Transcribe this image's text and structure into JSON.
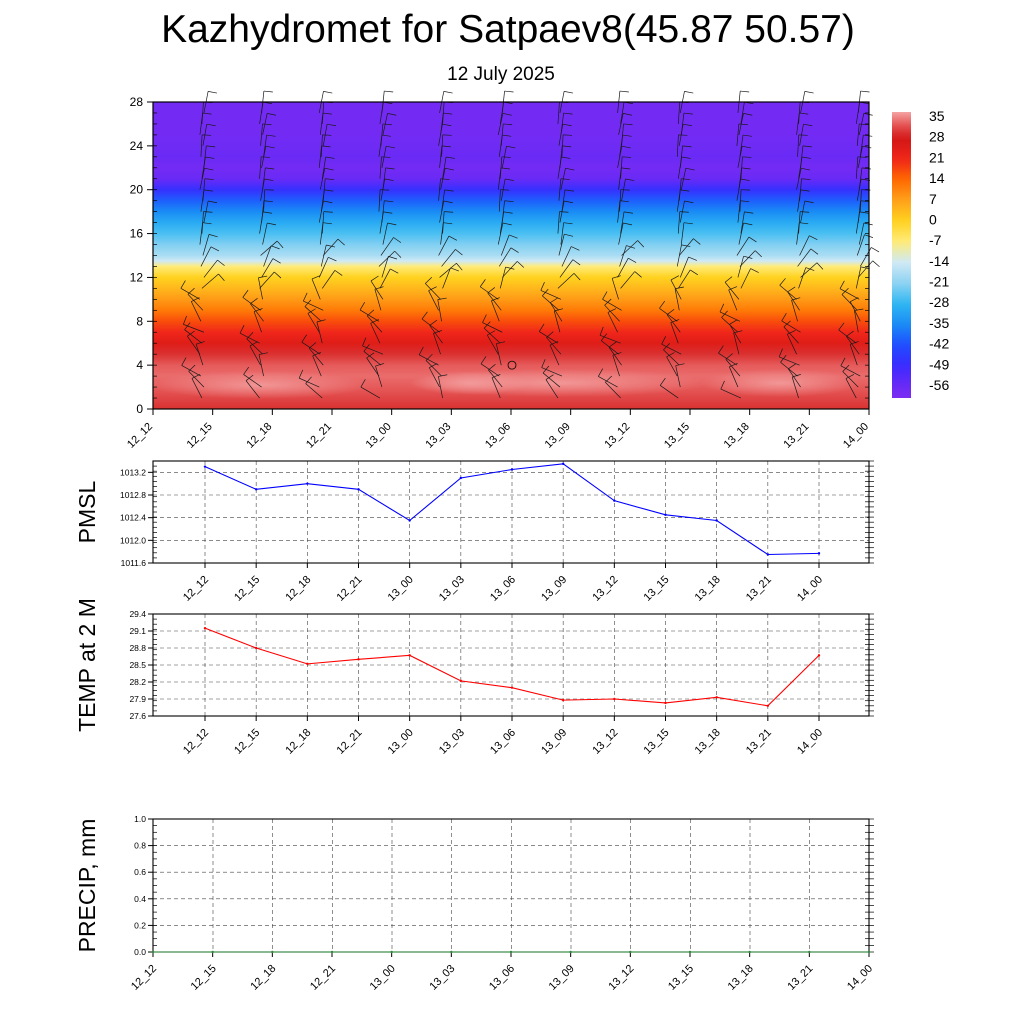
{
  "header": {
    "title": "Kazhydromet for Satpaev8(45.87 50.57)",
    "date": "12 July 2025"
  },
  "time_labels": [
    "12_12",
    "12_15",
    "12_18",
    "12_21",
    "13_00",
    "13_03",
    "13_06",
    "13_09",
    "13_12",
    "13_15",
    "13_18",
    "13_21",
    "14_00"
  ],
  "chart_data": [
    {
      "type": "heatmap",
      "title": "",
      "xlabel": "",
      "ylabel": "",
      "x": [
        "12_12",
        "12_15",
        "12_18",
        "12_21",
        "13_00",
        "13_03",
        "13_06",
        "13_09",
        "13_12",
        "13_15",
        "13_18",
        "13_21",
        "14_00"
      ],
      "y_ticks": [
        0,
        4,
        8,
        12,
        16,
        20,
        24,
        28
      ],
      "ylim": [
        0,
        28
      ],
      "profile_levels": [
        0,
        2,
        3,
        4,
        5,
        6,
        7,
        8,
        9,
        10,
        11,
        12,
        13,
        13.5,
        14,
        15,
        16,
        17,
        18,
        19,
        20,
        21,
        22,
        23,
        24,
        25,
        26,
        27,
        28
      ],
      "profile_temps": [
        30,
        33,
        34,
        33,
        30,
        25,
        21,
        17,
        12,
        8,
        4,
        0,
        -7,
        -14,
        -18,
        -22,
        -26,
        -30,
        -35,
        -40,
        -48,
        -56,
        -58,
        -56,
        -57,
        -58,
        -58,
        -58,
        -58
      ],
      "colorbar_labels": [
        "35",
        "28",
        "21",
        "14",
        "7",
        "0",
        "-7",
        "-14",
        "-21",
        "-28",
        "-35",
        "-42",
        "-49",
        "-56"
      ],
      "colorbar_range": [
        -60,
        37
      ],
      "wind_barbs": "overlay",
      "grid": false
    },
    {
      "type": "line",
      "ylabel": "PMSL",
      "x": [
        "12_12",
        "12_15",
        "12_18",
        "12_21",
        "13_00",
        "13_03",
        "13_06",
        "13_09",
        "13_12",
        "13_15",
        "13_18",
        "13_21",
        "14_00"
      ],
      "series": [
        {
          "values": [
            1013.3,
            1012.9,
            1013.0,
            1012.9,
            1012.35,
            1013.1,
            1013.25,
            1013.35,
            1012.7,
            1012.45,
            1012.35,
            1011.75,
            1011.77
          ],
          "color": "#0000ff"
        }
      ],
      "y_ticks": [
        "1011.6",
        "1012.0",
        "1012.4",
        "1012.8",
        "1013.2"
      ],
      "ylim": [
        1011.6,
        1013.4
      ],
      "grid": true
    },
    {
      "type": "line",
      "ylabel": "TEMP at 2 M",
      "x": [
        "12_12",
        "12_15",
        "12_18",
        "12_21",
        "13_00",
        "13_03",
        "13_06",
        "13_09",
        "13_12",
        "13_15",
        "13_18",
        "13_21",
        "14_00"
      ],
      "series": [
        {
          "values": [
            29.15,
            28.8,
            28.52,
            28.6,
            28.67,
            28.22,
            28.1,
            27.88,
            27.9,
            27.83,
            27.93,
            27.78,
            28.67
          ],
          "color": "#ff0000"
        }
      ],
      "y_ticks": [
        "27.6",
        "27.9",
        "28.2",
        "28.5",
        "28.8",
        "29.1",
        "29.4"
      ],
      "ylim": [
        27.6,
        29.4
      ],
      "grid": true
    },
    {
      "type": "line",
      "ylabel": "PRECIP, mm",
      "x": [
        "12_12",
        "12_15",
        "12_18",
        "12_21",
        "13_00",
        "13_03",
        "13_06",
        "13_09",
        "13_12",
        "13_15",
        "13_18",
        "13_21",
        "14_00"
      ],
      "series": [
        {
          "values": [
            0,
            0,
            0,
            0,
            0,
            0,
            0,
            0,
            0,
            0,
            0,
            0,
            0
          ],
          "color": "#2e8b3a"
        }
      ],
      "y_ticks": [
        "0.0",
        "0.2",
        "0.4",
        "0.6",
        "0.8",
        "1.0"
      ],
      "ylim": [
        0,
        1.0
      ],
      "grid": true
    }
  ]
}
